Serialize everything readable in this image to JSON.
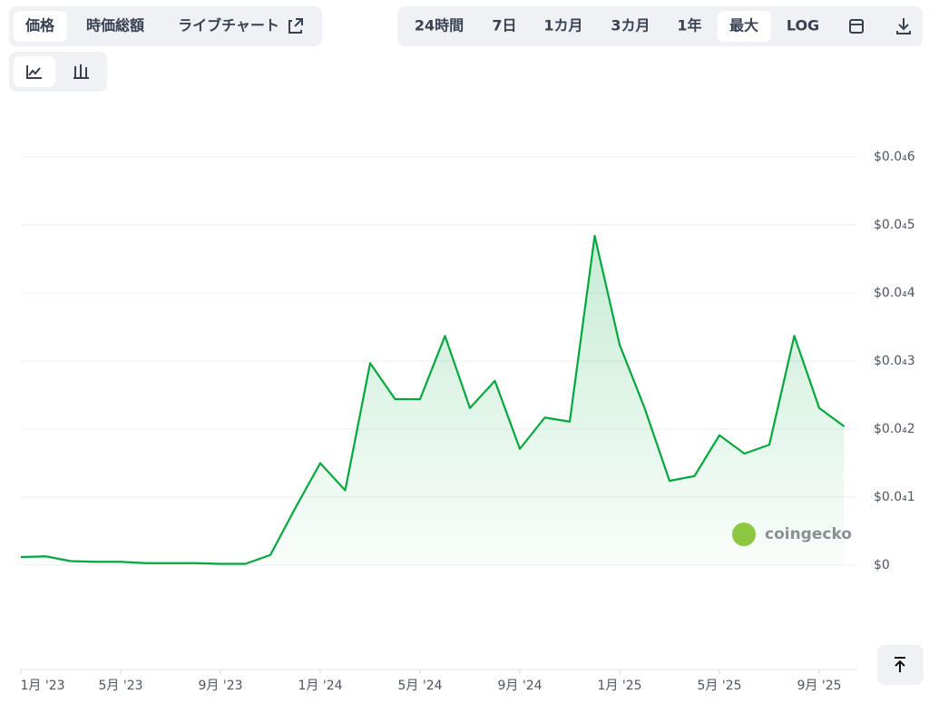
{
  "ui": {
    "tabs": [
      "価格",
      "時価総額",
      "ライブチャート"
    ],
    "ranges": [
      "24時間",
      "7日",
      "1カ月",
      "3カ月",
      "1年",
      "最大",
      "LOG"
    ],
    "watermark": "coingecko"
  },
  "chart_data": {
    "type": "line",
    "x": [
      "2023-01",
      "2023-02",
      "2023-03",
      "2023-04",
      "2023-05",
      "2023-06",
      "2023-07",
      "2023-08",
      "2023-09",
      "2023-10",
      "2023-11",
      "2023-12",
      "2024-01",
      "2024-02",
      "2024-03",
      "2024-04",
      "2024-05",
      "2024-06",
      "2024-07",
      "2024-08",
      "2024-09",
      "2024-10",
      "2024-11",
      "2024-12",
      "2025-01",
      "2025-02",
      "2025-03",
      "2025-04",
      "2025-05",
      "2025-06",
      "2025-07",
      "2025-08",
      "2025-09",
      "2025-10"
    ],
    "series": [
      {
        "name": "価格",
        "color": "#00a83e",
        "values": [
          1.2e-06,
          1.3e-06,
          6e-07,
          5e-07,
          5e-07,
          3e-07,
          3e-07,
          3e-07,
          2e-07,
          2e-07,
          1.5e-06,
          8.4e-06,
          1.5e-05,
          1.1e-05,
          2.97e-05,
          2.44e-05,
          2.44e-05,
          3.37e-05,
          2.31e-05,
          2.71e-05,
          1.71e-05,
          2.17e-05,
          2.11e-05,
          4.84e-05,
          3.24e-05,
          2.31e-05,
          1.24e-05,
          1.31e-05,
          1.91e-05,
          1.64e-05,
          1.77e-05,
          3.37e-05,
          2.31e-05,
          2.04e-05
        ]
      }
    ],
    "ylim": [
      0,
      6e-05
    ],
    "yticks": [
      {
        "value": 0,
        "label": "$0"
      },
      {
        "value": 1e-05,
        "label": "$0.0₄1"
      },
      {
        "value": 2e-05,
        "label": "$0.0₄2"
      },
      {
        "value": 3e-05,
        "label": "$0.0₄3"
      },
      {
        "value": 4e-05,
        "label": "$0.0₄4"
      },
      {
        "value": 5e-05,
        "label": "$0.0₄5"
      },
      {
        "value": 6e-05,
        "label": "$0.0₄6"
      }
    ],
    "xticks": [
      {
        "value": "2023-01",
        "label": "1月 '23"
      },
      {
        "value": "2023-05",
        "label": "5月 '23"
      },
      {
        "value": "2023-09",
        "label": "9月 '23"
      },
      {
        "value": "2024-01",
        "label": "1月 '24"
      },
      {
        "value": "2024-05",
        "label": "5月 '24"
      },
      {
        "value": "2024-09",
        "label": "9月 '24"
      },
      {
        "value": "2025-01",
        "label": "1月 '25"
      },
      {
        "value": "2025-05",
        "label": "5月 '25"
      },
      {
        "value": "2025-09",
        "label": "9月 '25"
      }
    ],
    "grid": true
  }
}
